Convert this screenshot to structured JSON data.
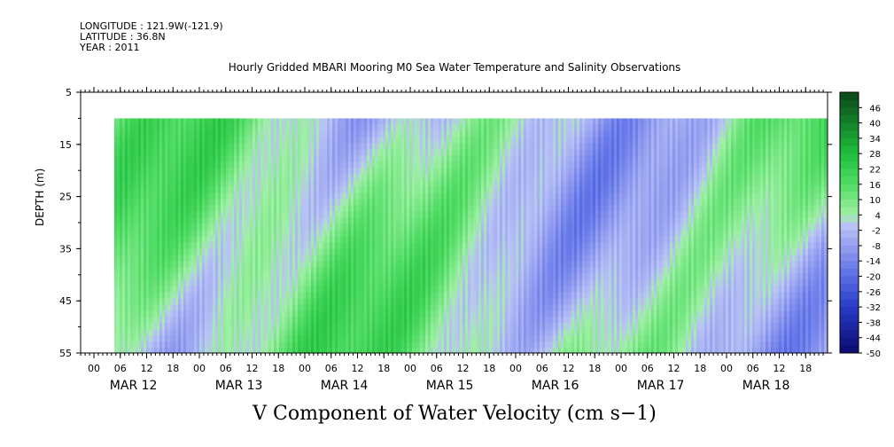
{
  "header": {
    "longitude": "LONGITUDE : 121.9W(-121.9)",
    "latitude": "LATITUDE : 36.8N",
    "year": "YEAR : 2011"
  },
  "chart_data": {
    "type": "heatmap",
    "title": "Hourly Gridded MBARI Mooring M0 Sea Water Temperature and Salinity Observations",
    "xlabel": "V Component of Water Velocity (cm s−1)",
    "ylabel": "DEPTH (m)",
    "ylim": [
      55,
      5
    ],
    "y_ticks": [
      5,
      15,
      25,
      35,
      45,
      55
    ],
    "data_depth_range": [
      10,
      55
    ],
    "x_hour_ticks": [
      "00",
      "06",
      "12",
      "18",
      "00",
      "06",
      "12",
      "18",
      "00",
      "06",
      "12",
      "18",
      "00",
      "06",
      "12",
      "18",
      "00",
      "06",
      "12",
      "18",
      "00",
      "06",
      "12",
      "18",
      "00",
      "06",
      "12",
      "18"
    ],
    "x_date_labels": [
      "MAR 12",
      "MAR 13",
      "MAR 14",
      "MAR 15",
      "MAR 16",
      "MAR 17",
      "MAR 18"
    ],
    "colorbar": {
      "levels": [
        "46",
        "40",
        "34",
        "28",
        "22",
        "16",
        "10",
        "4",
        "-2",
        "-8",
        "-14",
        "-20",
        "-26",
        "-32",
        "-38",
        "-44",
        "-50"
      ],
      "range": [
        -50,
        52
      ],
      "colors": {
        "high": "#0b3d14",
        "mid_green": "#22cc44",
        "light_green": "#9ff0a0",
        "light_blue": "#b3bcf5",
        "mid_blue": "#6d7de8",
        "low": "#0a0a6e"
      }
    },
    "field_description_values": {
      "dominant_range": [
        -14,
        22
      ]
    }
  }
}
